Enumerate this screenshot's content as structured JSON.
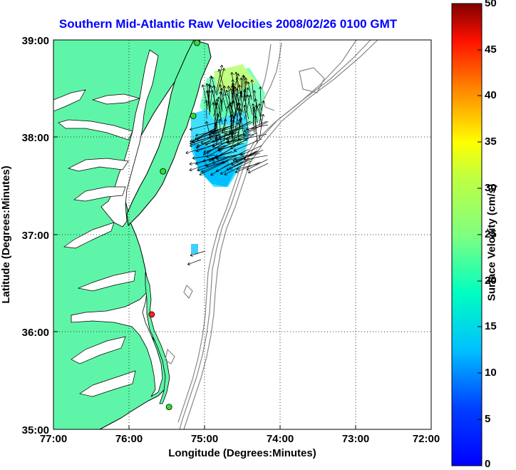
{
  "title": "Southern Mid-Atlantic Raw Velocities 2008/02/26 0100 GMT",
  "x_axis": {
    "label": "Longitude (Degrees:Minutes)",
    "ticks": [
      "77:00",
      "76:00",
      "75:00",
      "74:00",
      "73:00",
      "72:00"
    ]
  },
  "y_axis": {
    "label": "Latitude (Degrees:Minutes)",
    "ticks": [
      "39:00",
      "38:00",
      "37:00",
      "36:00",
      "35:00"
    ]
  },
  "colorbar": {
    "label": "Surface Velocity (cm/s)",
    "min": 0,
    "max": 50,
    "ticks": [
      "50",
      "45",
      "40",
      "35",
      "30",
      "25",
      "20",
      "15",
      "10",
      "5",
      "0"
    ]
  },
  "colors": {
    "title": "#0000ff",
    "land": "#5ff5a8",
    "site_green": "#33dd33",
    "site_red": "#ff2020",
    "bathymetry": "#888888"
  },
  "map_extent": {
    "lon": [
      -77,
      -72
    ],
    "lat": [
      35,
      39
    ]
  },
  "radar_sites": [
    {
      "lon": -75.1,
      "lat": 38.97,
      "status": "green"
    },
    {
      "lon": -75.15,
      "lat": 38.22,
      "status": "green"
    },
    {
      "lon": -75.55,
      "lat": 37.65,
      "status": "green"
    },
    {
      "lon": -75.7,
      "lat": 36.18,
      "status": "red"
    },
    {
      "lon": -75.47,
      "lat": 35.23,
      "status": "green"
    }
  ]
}
